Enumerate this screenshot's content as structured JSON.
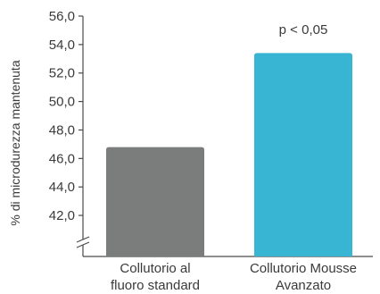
{
  "chart_data": {
    "type": "bar",
    "ylabel": "% di microdurezza mantenuta",
    "categories": [
      [
        "Collutorio al",
        "fluoro standard"
      ],
      [
        "Collutorio Mousse",
        "Avanzato"
      ]
    ],
    "values": [
      46.8,
      53.4
    ],
    "colors": [
      "#7b7d7c",
      "#38b5d3"
    ],
    "ylim": [
      41,
      56
    ],
    "yticks": [
      42.0,
      44.0,
      46.0,
      48.0,
      50.0,
      52.0,
      54.0,
      56.0
    ],
    "ytick_labels": [
      "42,0",
      "44,0",
      "46,0",
      "48,0",
      "50,0",
      "52,0",
      "54,0",
      "56,0"
    ],
    "axis_break": true,
    "annotations": [
      {
        "text": "p < 0,05",
        "category_index": 1
      }
    ]
  }
}
